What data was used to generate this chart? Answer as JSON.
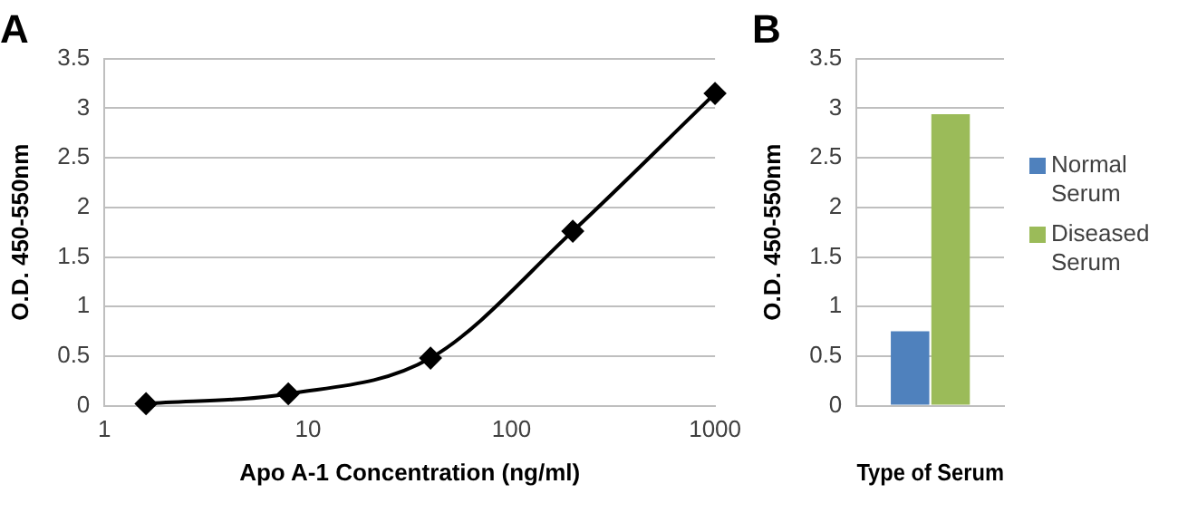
{
  "chart_data": [
    {
      "type": "line",
      "title": "A",
      "xlabel": "Apo A-1 Concentration (ng/ml)",
      "ylabel": "O.D. 450-550nm",
      "x": [
        1.6,
        8,
        40,
        200,
        1000
      ],
      "series": [
        {
          "color": "#000000",
          "values": [
            0.02,
            0.12,
            0.48,
            1.76,
            3.15
          ]
        }
      ],
      "log": "x",
      "xlim": [
        1,
        1000
      ],
      "xticks": [
        1,
        10,
        100,
        1000
      ],
      "ylim": [
        0,
        3.5
      ],
      "yticks": [
        0,
        0.5,
        1,
        1.5,
        2,
        2.5,
        3,
        3.5
      ],
      "grid": "y",
      "marker": "diamond",
      "line_style": "solid",
      "legend": false
    },
    {
      "type": "bar",
      "title": "B",
      "xlabel": "Type of Serum",
      "ylabel": "O.D. 450-550nm",
      "categories": [
        null
      ],
      "series": [
        {
          "name": "Normal Serum",
          "color": "#4f81bd",
          "values": [
            0.75
          ]
        },
        {
          "name": "Diseased Serum",
          "color": "#9bbb59",
          "values": [
            2.94
          ]
        }
      ],
      "ylim": [
        0,
        3.5
      ],
      "yticks": [
        0,
        0.5,
        1,
        1.5,
        2,
        2.5,
        3,
        3.5
      ],
      "grid": "y",
      "legend": "right"
    }
  ]
}
